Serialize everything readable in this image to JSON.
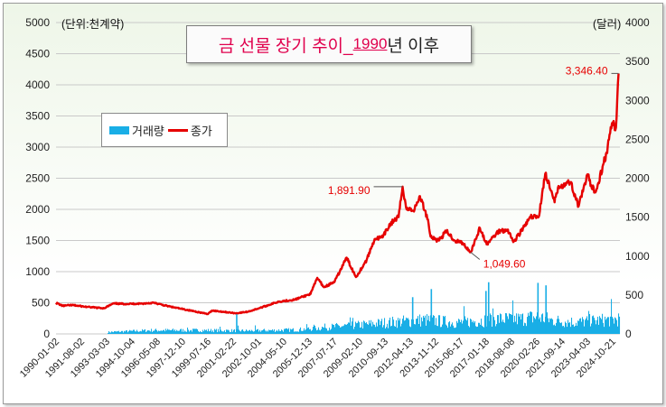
{
  "title": {
    "main": "금 선물 장기 추이_",
    "year": "1990",
    "tail": "년 이후"
  },
  "units": {
    "left": "(단위:천계약)",
    "right": "(달러)"
  },
  "legend": {
    "volume": "거래량",
    "price": "종가"
  },
  "colors": {
    "price_line": "#e60000",
    "volume_bars": "#19aee6",
    "annotation_text": "#e60000",
    "title_text": "#e0004d"
  },
  "chart_data": {
    "type": "bar+line",
    "x_tick_labels": [
      "1990-01-02",
      "1991-08-02",
      "1993-03-03",
      "1994-10-04",
      "1996-05-08",
      "1997-12-10",
      "1999-07-16",
      "2001-02-22",
      "2002-10-01",
      "2004-05-10",
      "2005-12-13",
      "2007-07-17",
      "2009-02-10",
      "2010-09-13",
      "2012-04-13",
      "2013-11-12",
      "2015-06-17",
      "2017-01-18",
      "2018-08-08",
      "2020-02-26",
      "2021-09-14",
      "2023-04-03",
      "2024-10-21"
    ],
    "y_left": {
      "label": "(단위:천계약)",
      "range": [
        0,
        5000
      ],
      "ticks": [
        0,
        500,
        1000,
        1500,
        2000,
        2500,
        3000,
        3500,
        4000,
        4500,
        5000
      ]
    },
    "y_right": {
      "label": "(달러)",
      "range": [
        0,
        4000
      ],
      "ticks": [
        0,
        500,
        1000,
        1500,
        2000,
        2500,
        3000,
        3500,
        4000
      ]
    },
    "series": [
      {
        "name": "종가",
        "type": "line",
        "axis": "right",
        "x": [
          "1990-01",
          "1990-06",
          "1991-01",
          "1992-01",
          "1993-01",
          "1993-08",
          "1994-06",
          "1995-06",
          "1996-02",
          "1996-12",
          "1997-10",
          "1998-06",
          "1999-07",
          "1999-10",
          "2000-06",
          "2001-04",
          "2002-01",
          "2002-12",
          "2003-12",
          "2004-12",
          "2005-12",
          "2006-05",
          "2006-10",
          "2007-06",
          "2008-03",
          "2008-10",
          "2009-06",
          "2009-12",
          "2010-06",
          "2010-12",
          "2011-06",
          "2011-09",
          "2011-12",
          "2012-06",
          "2012-10",
          "2013-04",
          "2013-06",
          "2013-12",
          "2014-06",
          "2014-12",
          "2015-06",
          "2015-12",
          "2016-07",
          "2016-12",
          "2017-09",
          "2018-04",
          "2018-08",
          "2019-02",
          "2019-09",
          "2020-03",
          "2020-08",
          "2021-03",
          "2021-06",
          "2022-03",
          "2022-09",
          "2023-04",
          "2023-06",
          "2023-10",
          "2024-03",
          "2024-06",
          "2024-10",
          "2025-01",
          "2025-03"
        ],
        "y": [
          400,
          360,
          370,
          345,
          330,
          390,
          385,
          390,
          400,
          360,
          325,
          300,
          255,
          300,
          285,
          265,
          285,
          345,
          415,
          440,
          515,
          720,
          600,
          670,
          980,
          730,
          950,
          1220,
          1240,
          1420,
          1500,
          1891.9,
          1600,
          1600,
          1770,
          1470,
          1250,
          1200,
          1320,
          1200,
          1170,
          1049.6,
          1360,
          1150,
          1320,
          1340,
          1180,
          1320,
          1500,
          1500,
          2060,
          1690,
          1900,
          1950,
          1640,
          2050,
          1900,
          1830,
          2150,
          2330,
          2700,
          2650,
          3346.4
        ]
      },
      {
        "name": "거래량",
        "type": "bar",
        "axis": "left",
        "note": "daily volume; approximate envelope by period",
        "x": [
          "1993-03",
          "1996-01",
          "1999-01",
          "2002-01",
          "2005-01",
          "2007-01",
          "2009-01",
          "2011-01",
          "2013-01",
          "2015-01",
          "2016-06",
          "2017-06",
          "2019-01",
          "2020-02",
          "2021-01",
          "2022-06",
          "2024-01",
          "2025-03"
        ],
        "y": [
          40,
          80,
          80,
          70,
          90,
          150,
          200,
          260,
          310,
          250,
          290,
          330,
          330,
          380,
          300,
          260,
          300,
          330
        ],
        "spikes": [
          {
            "x": "2001-04",
            "y": 330
          },
          {
            "x": "2012-04",
            "y": 590
          },
          {
            "x": "2013-06",
            "y": 720
          },
          {
            "x": "2016-11",
            "y": 690
          },
          {
            "x": "2017-01",
            "y": 830
          },
          {
            "x": "2020-02",
            "y": 820
          },
          {
            "x": "2020-08",
            "y": 780
          }
        ]
      }
    ],
    "annotations": [
      {
        "label": "3,346.40",
        "x": "2025-03",
        "y": 3346.4
      },
      {
        "label": "1,891.90",
        "x": "2011-09",
        "y": 1891.9
      },
      {
        "label": "1,049.60",
        "x": "2015-12",
        "y": 1049.6
      }
    ],
    "grid": true,
    "legend_position": "left-middle"
  }
}
